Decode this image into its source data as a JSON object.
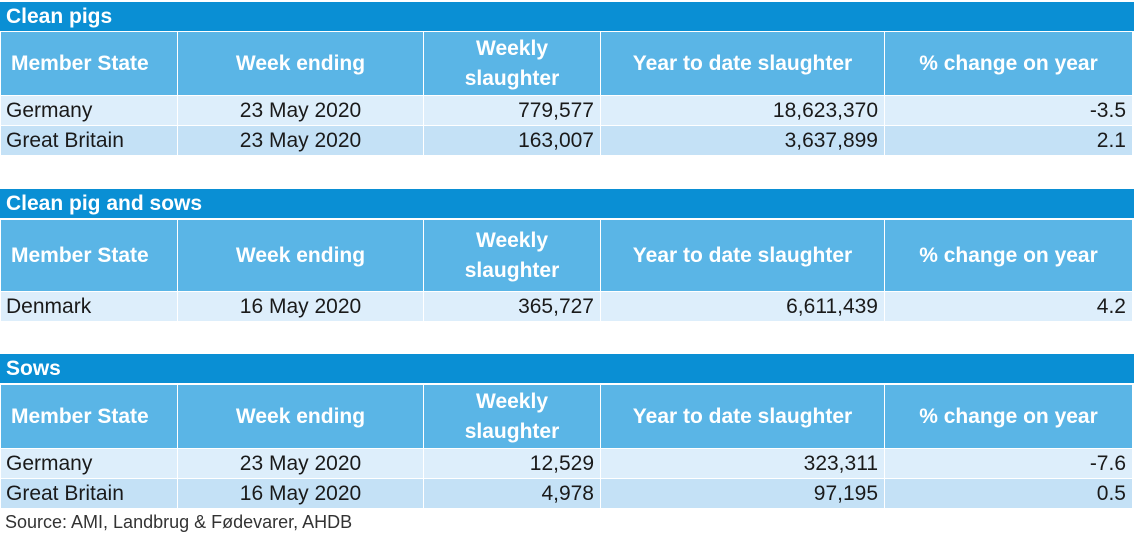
{
  "headers": {
    "member_state": "Member State",
    "week_ending": "Week ending",
    "weekly_slaughter": "Weekly slaughter",
    "ytd": "Year to date slaughter",
    "pct": "% change on year"
  },
  "sections": [
    {
      "title": "Clean pigs",
      "rows": [
        {
          "state": "Germany",
          "week": "23 May 2020",
          "weekly": "779,577",
          "ytd": "18,623,370",
          "pct": "-3.5"
        },
        {
          "state": "Great Britain",
          "week": "23 May 2020",
          "weekly": "163,007",
          "ytd": "3,637,899",
          "pct": "2.1"
        }
      ]
    },
    {
      "title": "Clean pig and sows",
      "rows": [
        {
          "state": "Denmark",
          "week": "16 May 2020",
          "weekly": "365,727",
          "ytd": "6,611,439",
          "pct": "4.2"
        }
      ]
    },
    {
      "title": "Sows",
      "rows": [
        {
          "state": "Germany",
          "week": "23 May 2020",
          "weekly": "12,529",
          "ytd": "323,311",
          "pct": "-7.6"
        },
        {
          "state": "Great Britain",
          "week": "16 May 2020",
          "weekly": "4,978",
          "ytd": "97,195",
          "pct": "0.5"
        }
      ]
    }
  ],
  "source": "Source: AMI, Landbrug & Fødevarer,  AHDB"
}
